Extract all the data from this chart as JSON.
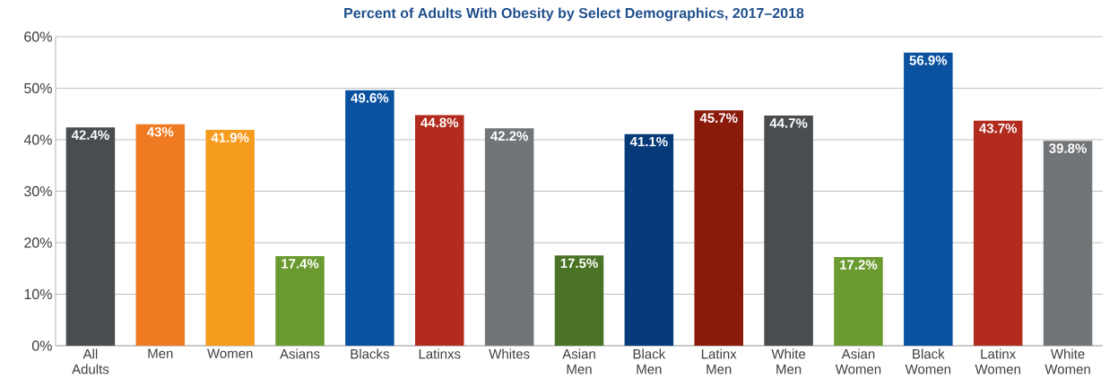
{
  "chart_data": {
    "type": "bar",
    "title": "Percent of Adults With Obesity by Select Demographics, 2017–2018",
    "categories": [
      "All Adults",
      "Men",
      "Women",
      "Asians",
      "Blacks",
      "Latinxs",
      "Whites",
      "Asian Men",
      "Black Men",
      "Latinx Men",
      "White Men",
      "Asian Women",
      "Black Women",
      "Latinx Women",
      "White Women"
    ],
    "values": [
      42.4,
      43,
      41.9,
      17.4,
      49.6,
      44.8,
      42.2,
      17.5,
      41.1,
      45.7,
      44.7,
      17.2,
      56.9,
      43.7,
      39.8
    ],
    "value_labels": [
      "42.4%",
      "43%",
      "41.9%",
      "17.4%",
      "49.6%",
      "44.8%",
      "42.2%",
      "17.5%",
      "41.1%",
      "45.7%",
      "44.7%",
      "17.2%",
      "56.9%",
      "43.7%",
      "39.8%"
    ],
    "colors": [
      "#4a4d50",
      "#f07a22",
      "#f59c1f",
      "#6a9a30",
      "#0a52a0",
      "#b22b1e",
      "#727578",
      "#4a7325",
      "#063a78",
      "#8a1a0a",
      "#4a4d50",
      "#6a9a30",
      "#0a52a0",
      "#b22b1e",
      "#727578"
    ],
    "ylim": [
      0,
      60
    ],
    "yticks": [
      {
        "value": 0,
        "label": "0%"
      },
      {
        "value": 10,
        "label": "10%"
      },
      {
        "value": 20,
        "label": "20%"
      },
      {
        "value": 30,
        "label": "30%"
      },
      {
        "value": 40,
        "label": "40%"
      },
      {
        "value": 50,
        "label": "50%"
      },
      {
        "value": 60,
        "label": "60%"
      }
    ],
    "grid": "y"
  }
}
